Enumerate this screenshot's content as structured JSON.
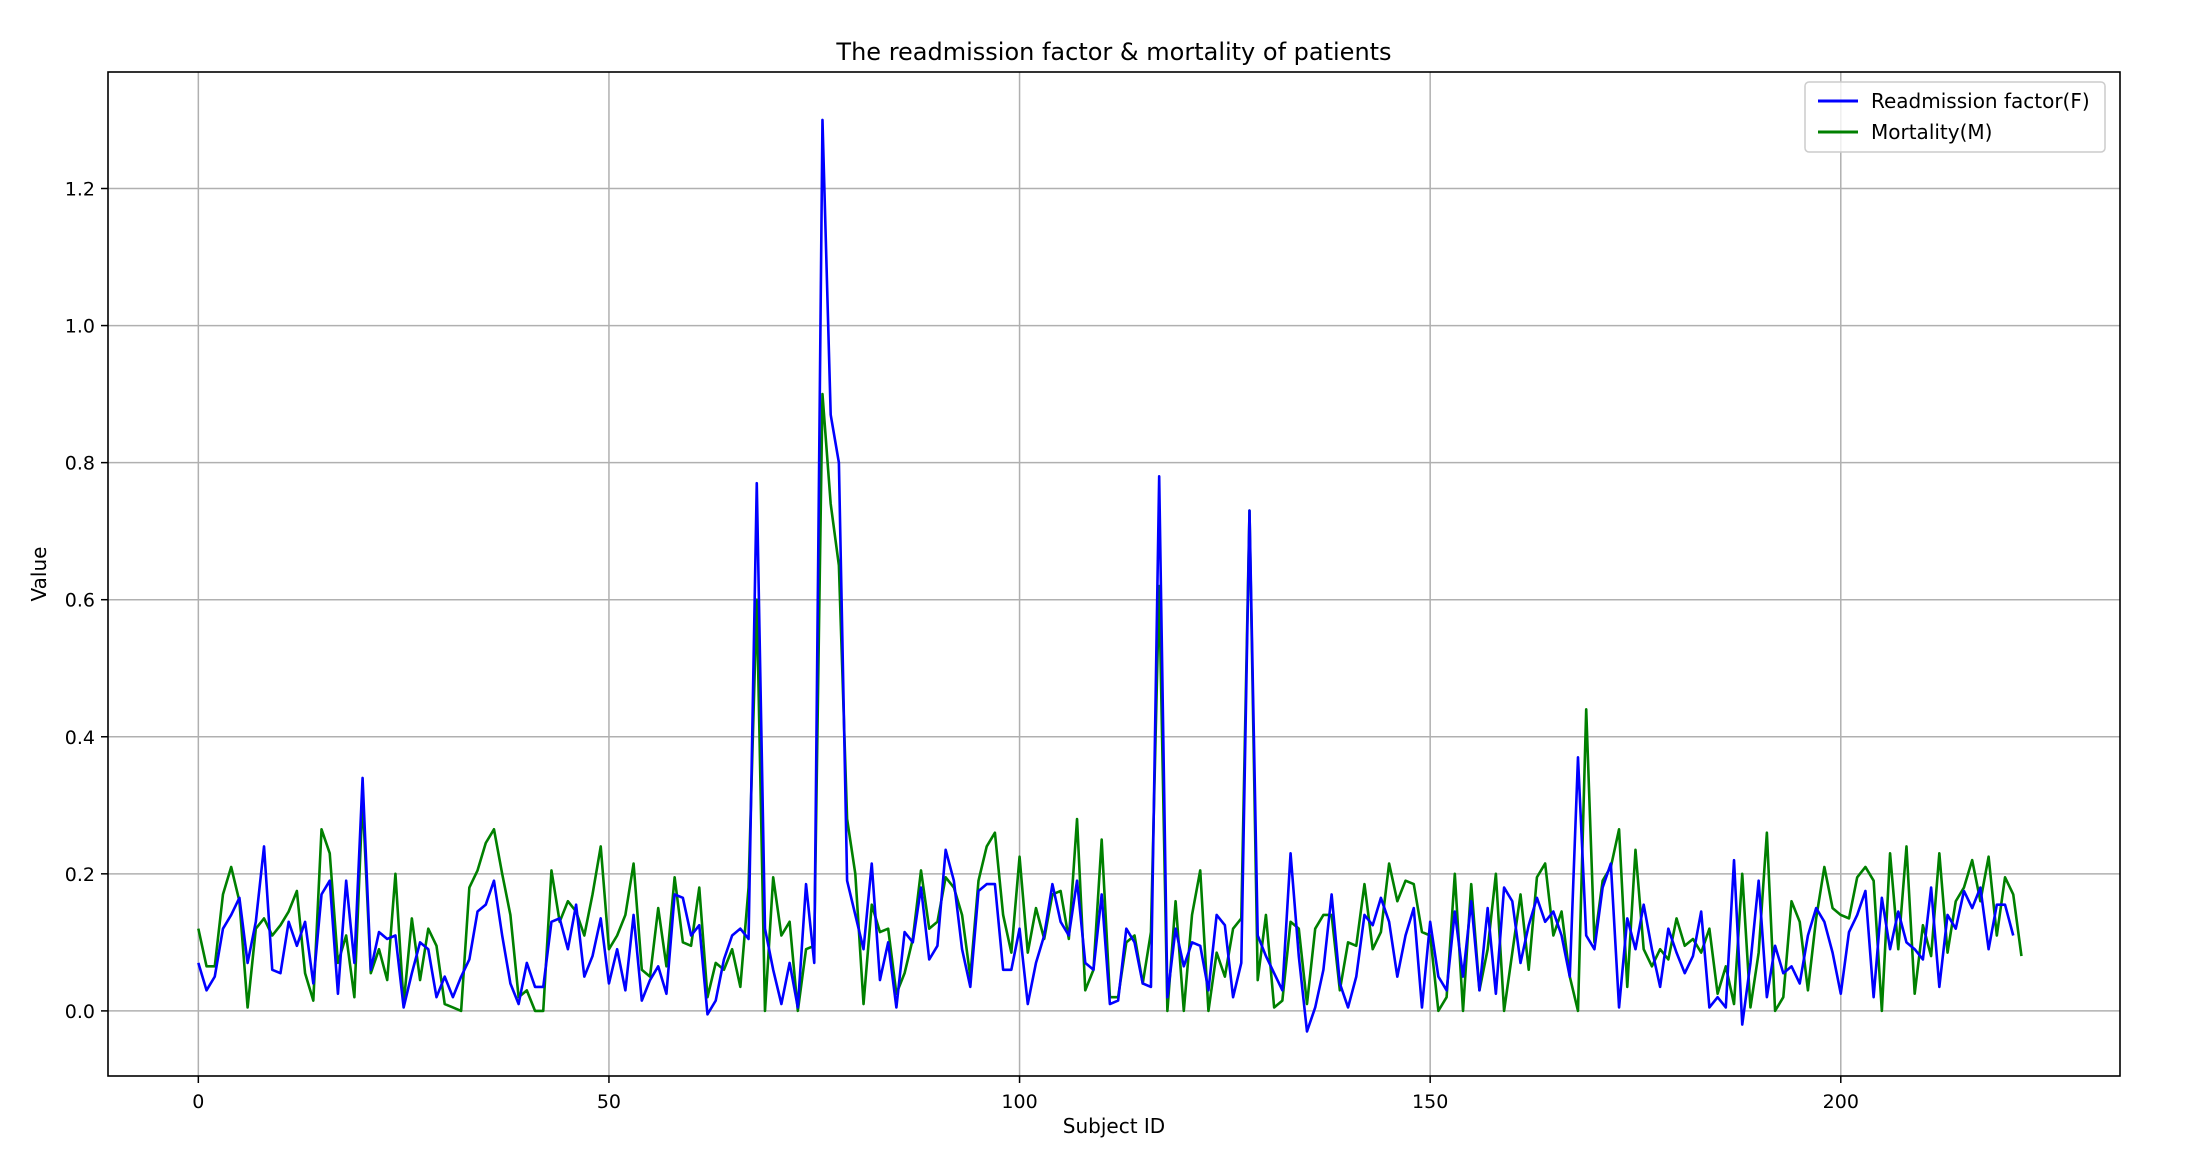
{
  "chart_data": {
    "type": "line",
    "title": "The readmission factor & mortality of patients",
    "xlabel": "Subject ID",
    "ylabel": "Value",
    "xlim": [
      -11,
      234
    ],
    "ylim": [
      -0.095,
      1.37
    ],
    "xticks": [
      0,
      50,
      100,
      150,
      200
    ],
    "yticks": [
      0.0,
      0.2,
      0.4,
      0.6,
      0.8,
      1.0,
      1.2
    ],
    "xtick_labels": [
      "0",
      "50",
      "100",
      "150",
      "200"
    ],
    "ytick_labels": [
      "0.0",
      "0.2",
      "0.4",
      "0.6",
      "0.8",
      "1.0",
      "1.2"
    ],
    "grid": true,
    "legend_position": "top-right",
    "series": [
      {
        "name": "Readmission factor(F)",
        "color": "#0000ff",
        "values": [
          0.07,
          0.03,
          0.05,
          0.12,
          0.14,
          0.165,
          0.07,
          0.13,
          0.24,
          0.06,
          0.055,
          0.13,
          0.095,
          0.13,
          0.04,
          0.17,
          0.19,
          0.025,
          0.19,
          0.07,
          0.34,
          0.06,
          0.115,
          0.105,
          0.11,
          0.005,
          0.055,
          0.1,
          0.09,
          0.02,
          0.05,
          0.02,
          0.05,
          0.075,
          0.145,
          0.155,
          0.19,
          0.11,
          0.04,
          0.01,
          0.07,
          0.035,
          0.035,
          0.13,
          0.135,
          0.09,
          0.155,
          0.05,
          0.08,
          0.135,
          0.04,
          0.09,
          0.03,
          0.14,
          0.015,
          0.045,
          0.065,
          0.025,
          0.17,
          0.165,
          0.11,
          0.125,
          -0.005,
          0.015,
          0.075,
          0.11,
          0.12,
          0.105,
          0.77,
          0.12,
          0.06,
          0.01,
          0.07,
          0.005,
          0.185,
          0.07,
          1.3,
          0.87,
          0.8,
          0.19,
          0.14,
          0.09,
          0.215,
          0.045,
          0.1,
          0.005,
          0.115,
          0.1,
          0.18,
          0.075,
          0.095,
          0.235,
          0.19,
          0.09,
          0.035,
          0.175,
          0.185,
          0.185,
          0.06,
          0.06,
          0.12,
          0.01,
          0.07,
          0.11,
          0.185,
          0.13,
          0.11,
          0.19,
          0.07,
          0.06,
          0.17,
          0.01,
          0.015,
          0.12,
          0.1,
          0.04,
          0.035,
          0.78,
          0.02,
          0.12,
          0.065,
          0.1,
          0.095,
          0.03,
          0.14,
          0.125,
          0.02,
          0.07,
          0.73,
          0.11,
          0.08,
          0.055,
          0.03,
          0.23,
          0.08,
          -0.03,
          0.005,
          0.06,
          0.17,
          0.04,
          0.005,
          0.05,
          0.14,
          0.125,
          0.165,
          0.13,
          0.05,
          0.11,
          0.15,
          0.005,
          0.13,
          0.05,
          0.03,
          0.145,
          0.05,
          0.16,
          0.03,
          0.15,
          0.025,
          0.18,
          0.16,
          0.07,
          0.125,
          0.165,
          0.13,
          0.145,
          0.11,
          0.05,
          0.37,
          0.11,
          0.09,
          0.18,
          0.215,
          0.005,
          0.135,
          0.09,
          0.155,
          0.09,
          0.035,
          0.12,
          0.085,
          0.055,
          0.08,
          0.145,
          0.005,
          0.02,
          0.005,
          0.22,
          -0.02,
          0.07,
          0.19,
          0.02,
          0.095,
          0.055,
          0.065,
          0.04,
          0.11,
          0.15,
          0.13,
          0.085,
          0.025,
          0.115,
          0.14,
          0.175,
          0.02,
          0.165,
          0.09,
          0.145,
          0.1,
          0.09,
          0.075,
          0.18,
          0.035,
          0.14,
          0.12,
          0.175,
          0.15,
          0.18,
          0.09,
          0.155,
          0.155,
          0.11
        ]
      },
      {
        "name": "Mortality(M)",
        "color": "#008000",
        "values": [
          0.12,
          0.065,
          0.065,
          0.17,
          0.21,
          0.16,
          0.005,
          0.12,
          0.135,
          0.11,
          0.125,
          0.145,
          0.175,
          0.055,
          0.015,
          0.265,
          0.23,
          0.07,
          0.11,
          0.02,
          0.31,
          0.055,
          0.09,
          0.045,
          0.2,
          0.01,
          0.135,
          0.045,
          0.12,
          0.095,
          0.01,
          0.005,
          0.0,
          0.18,
          0.205,
          0.245,
          0.265,
          0.2,
          0.14,
          0.02,
          0.03,
          0.0,
          0.0,
          0.205,
          0.13,
          0.16,
          0.145,
          0.11,
          0.17,
          0.24,
          0.09,
          0.11,
          0.14,
          0.215,
          0.06,
          0.05,
          0.15,
          0.065,
          0.195,
          0.1,
          0.095,
          0.18,
          0.02,
          0.07,
          0.06,
          0.09,
          0.035,
          0.18,
          0.6,
          0.0,
          0.195,
          0.11,
          0.13,
          0.0,
          0.09,
          0.095,
          0.9,
          0.74,
          0.65,
          0.28,
          0.2,
          0.01,
          0.155,
          0.115,
          0.12,
          0.025,
          0.055,
          0.105,
          0.205,
          0.12,
          0.13,
          0.195,
          0.18,
          0.14,
          0.05,
          0.19,
          0.24,
          0.26,
          0.14,
          0.085,
          0.225,
          0.085,
          0.15,
          0.105,
          0.17,
          0.175,
          0.105,
          0.28,
          0.03,
          0.06,
          0.25,
          0.02,
          0.02,
          0.1,
          0.11,
          0.04,
          0.115,
          0.62,
          0.0,
          0.16,
          0.0,
          0.14,
          0.205,
          0.0,
          0.085,
          0.05,
          0.12,
          0.135,
          0.73,
          0.045,
          0.14,
          0.005,
          0.015,
          0.13,
          0.12,
          0.01,
          0.12,
          0.14,
          0.14,
          0.03,
          0.1,
          0.095,
          0.185,
          0.09,
          0.115,
          0.215,
          0.16,
          0.19,
          0.185,
          0.115,
          0.11,
          0.0,
          0.02,
          0.2,
          0.0,
          0.185,
          0.03,
          0.09,
          0.2,
          0.0,
          0.085,
          0.17,
          0.06,
          0.195,
          0.215,
          0.11,
          0.145,
          0.05,
          0.0,
          0.44,
          0.1,
          0.19,
          0.21,
          0.265,
          0.035,
          0.235,
          0.09,
          0.065,
          0.09,
          0.075,
          0.135,
          0.095,
          0.105,
          0.085,
          0.12,
          0.025,
          0.065,
          0.01,
          0.2,
          0.005,
          0.085,
          0.26,
          0.0,
          0.02,
          0.16,
          0.13,
          0.03,
          0.135,
          0.21,
          0.15,
          0.14,
          0.135,
          0.195,
          0.21,
          0.19,
          0.0,
          0.23,
          0.09,
          0.24,
          0.025,
          0.125,
          0.08,
          0.23,
          0.085,
          0.16,
          0.18,
          0.22,
          0.16,
          0.225,
          0.11,
          0.195,
          0.17,
          0.08
        ]
      }
    ]
  }
}
